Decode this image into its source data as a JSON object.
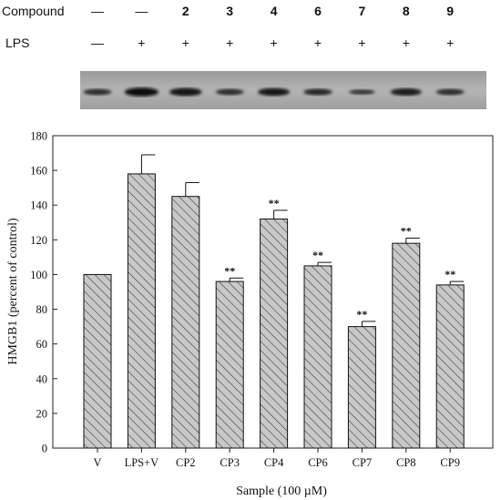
{
  "header": {
    "compound_label": "Compound",
    "lps_label": "LPS",
    "compound_row": [
      "—",
      "—",
      "2",
      "3",
      "4",
      "6",
      "7",
      "8",
      "9"
    ],
    "lps_row": [
      "—",
      "+",
      "+",
      "+",
      "+",
      "+",
      "+",
      "+",
      "+"
    ]
  },
  "blot": {
    "band_intensity": [
      0.55,
      0.95,
      0.85,
      0.55,
      0.8,
      0.6,
      0.4,
      0.75,
      0.55
    ]
  },
  "chart_data": {
    "type": "bar",
    "categories": [
      "V",
      "LPS+V",
      "CP2",
      "CP3",
      "CP4",
      "CP6",
      "CP7",
      "CP8",
      "CP9"
    ],
    "values": [
      100,
      158,
      145,
      96,
      132,
      105,
      70,
      118,
      94
    ],
    "errors": [
      0,
      11,
      8,
      2,
      5,
      2,
      3,
      3,
      2
    ],
    "annotations": [
      "",
      "",
      "",
      "**",
      "**",
      "**",
      "**",
      "**",
      "**"
    ],
    "xlabel": "Sample (100 µM)",
    "ylabel": "HMGB1 (percent of control)",
    "ylim": [
      0,
      180
    ],
    "yticks": [
      0,
      20,
      40,
      60,
      80,
      100,
      120,
      140,
      160,
      180
    ],
    "bar_fill": "#c8c8c8",
    "hatch": "diagonal",
    "grid": false
  }
}
